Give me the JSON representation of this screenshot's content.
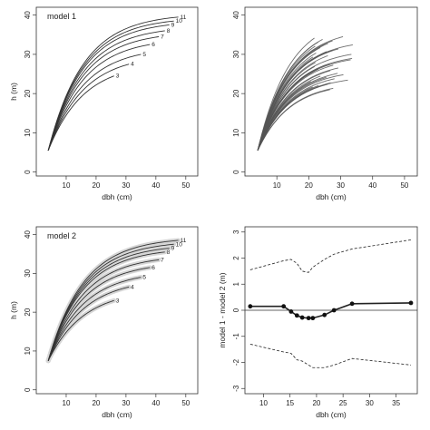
{
  "chart_data": [
    {
      "type": "line",
      "title": "model 1",
      "xlabel": "dbh (cm)",
      "ylabel": "h (m)",
      "xlim": [
        0,
        54
      ],
      "ylim": [
        -1,
        42
      ],
      "xticks": [
        10,
        20,
        30,
        40,
        50
      ],
      "yticks": [
        0,
        10,
        20,
        30,
        40
      ],
      "grid": false,
      "band": false,
      "x_start": 4,
      "y_start": 5.5,
      "curve_shape": 0.085,
      "series": [
        {
          "label": "3",
          "x_end": 26,
          "y_end": 24.5
        },
        {
          "label": "4",
          "x_end": 31,
          "y_end": 27.5
        },
        {
          "label": "5",
          "x_end": 35,
          "y_end": 30
        },
        {
          "label": "6",
          "x_end": 38,
          "y_end": 32.5
        },
        {
          "label": "7",
          "x_end": 41,
          "y_end": 34.5
        },
        {
          "label": "8",
          "x_end": 43,
          "y_end": 36
        },
        {
          "label": "9",
          "x_end": 44.5,
          "y_end": 37.5
        },
        {
          "label": "10",
          "x_end": 46,
          "y_end": 38.5
        },
        {
          "label": "11",
          "x_end": 47.5,
          "y_end": 39.5
        }
      ]
    },
    {
      "type": "line",
      "title": "",
      "xlabel": "dbh (cm)",
      "ylabel": "",
      "xlim": [
        0,
        54
      ],
      "ylim": [
        -1,
        42
      ],
      "xticks": [
        10,
        20,
        30,
        40,
        50
      ],
      "yticks": [
        0,
        10,
        20,
        30,
        40
      ],
      "grid": false,
      "x_start": 4,
      "y_start": 5.5,
      "x_end_range": [
        17,
        34
      ],
      "y_end_range": [
        21,
        34.5
      ],
      "line_count": 40
    },
    {
      "type": "line",
      "title": "model 2",
      "xlabel": "dbh (cm)",
      "ylabel": "h (m)",
      "xlim": [
        0,
        54
      ],
      "ylim": [
        -1,
        42
      ],
      "xticks": [
        10,
        20,
        30,
        40,
        50
      ],
      "yticks": [
        0,
        10,
        20,
        30,
        40
      ],
      "grid": false,
      "band": true,
      "x_start": 4,
      "y_start": 7.5,
      "curve_shape": 0.085,
      "series": [
        {
          "label": "3",
          "x_end": 26,
          "y_end": 23
        },
        {
          "label": "4",
          "x_end": 31,
          "y_end": 26.5
        },
        {
          "label": "5",
          "x_end": 35,
          "y_end": 29
        },
        {
          "label": "6",
          "x_end": 38,
          "y_end": 31.5
        },
        {
          "label": "7",
          "x_end": 41,
          "y_end": 33.5
        },
        {
          "label": "8",
          "x_end": 43,
          "y_end": 35.5
        },
        {
          "label": "9",
          "x_end": 44.5,
          "y_end": 36.5
        },
        {
          "label": "10",
          "x_end": 46,
          "y_end": 37.5
        },
        {
          "label": "11",
          "x_end": 47.5,
          "y_end": 38.5
        }
      ]
    },
    {
      "type": "line",
      "title": "",
      "xlabel": "dbh (cm)",
      "ylabel": "model 1 - model 2 (m)",
      "xlim": [
        6.5,
        39
      ],
      "ylim": [
        -3.2,
        3.2
      ],
      "xticks": [
        10,
        15,
        20,
        25,
        30,
        35
      ],
      "yticks": [
        -3,
        -2,
        -1,
        0,
        1,
        2,
        3
      ],
      "grid": false,
      "hline": 0,
      "x": [
        7.5,
        13.8,
        15.2,
        16.3,
        17.3,
        18.5,
        19.3,
        21.5,
        23.3,
        26.7,
        37.8
      ],
      "series": [
        {
          "style": "solid",
          "points": true,
          "values": [
            0.15,
            0.15,
            -0.05,
            -0.2,
            -0.28,
            -0.3,
            -0.3,
            -0.18,
            0.0,
            0.25,
            0.28
          ]
        },
        {
          "style": "dashed",
          "points": false,
          "values": [
            1.55,
            1.9,
            1.95,
            1.8,
            1.5,
            1.45,
            1.65,
            1.95,
            2.15,
            2.35,
            2.7
          ]
        },
        {
          "style": "dashed",
          "points": false,
          "values": [
            -1.3,
            -1.6,
            -1.65,
            -1.9,
            -1.95,
            -2.1,
            -2.2,
            -2.2,
            -2.1,
            -1.85,
            -2.1
          ]
        }
      ]
    }
  ]
}
